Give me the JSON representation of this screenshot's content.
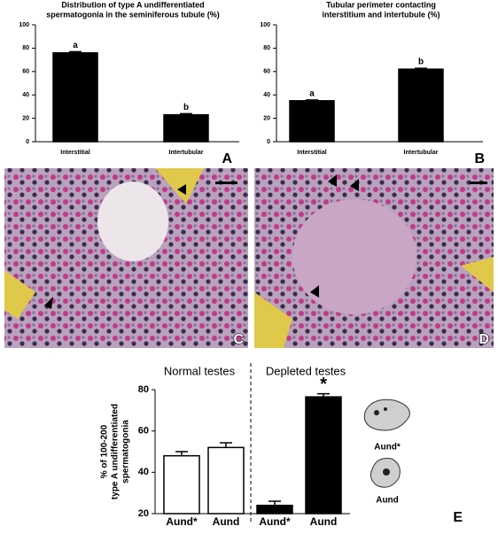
{
  "chart_data": [
    {
      "type": "bar",
      "panel": "A",
      "title": [
        "Distribution of type A undifferentiated",
        "spermatogonia in the seminiferous tubule (%)"
      ],
      "categories": [
        "Interstitial",
        "Intertubular"
      ],
      "values": [
        76,
        23
      ],
      "errors": [
        1,
        1
      ],
      "annotations": [
        "a",
        "b"
      ],
      "colors": [
        "#000000",
        "#000000"
      ],
      "ylim": [
        0,
        100
      ],
      "yticks": [
        0,
        20,
        40,
        60,
        80,
        100
      ]
    },
    {
      "type": "bar",
      "panel": "B",
      "title": [
        "Tubular perimeter contacting",
        "interstitium and intertubule (%)"
      ],
      "categories": [
        "Interstitial",
        "Intertubular"
      ],
      "values": [
        35,
        62
      ],
      "errors": [
        0.7,
        0.8
      ],
      "annotations": [
        "a",
        "b"
      ],
      "colors": [
        "#000000",
        "#000000"
      ],
      "ylim": [
        0,
        100
      ],
      "yticks": [
        0,
        20,
        40,
        60,
        80,
        100
      ]
    },
    {
      "type": "bar",
      "panel": "E",
      "ylabel": [
        "% of 100-200",
        "type A undifferentiated",
        "spermatogonia"
      ],
      "groups": [
        "Normal testes",
        "Depleted testes"
      ],
      "categories": [
        "Aund*",
        "Aund",
        "Aund*",
        "Aund"
      ],
      "values": [
        48,
        52,
        24,
        76.5
      ],
      "errors": [
        2,
        2.3,
        2,
        1.5
      ],
      "annotations": [
        null,
        null,
        null,
        "*"
      ],
      "colors": [
        "#ffffff",
        "#ffffff",
        "#000000",
        "#000000"
      ],
      "ylim": [
        20,
        80
      ],
      "yticks": [
        20,
        40,
        60,
        80
      ],
      "cell_labels": [
        "Aund*",
        "Aund"
      ]
    }
  ],
  "images": [
    {
      "panel": "C"
    },
    {
      "panel": "D"
    }
  ]
}
